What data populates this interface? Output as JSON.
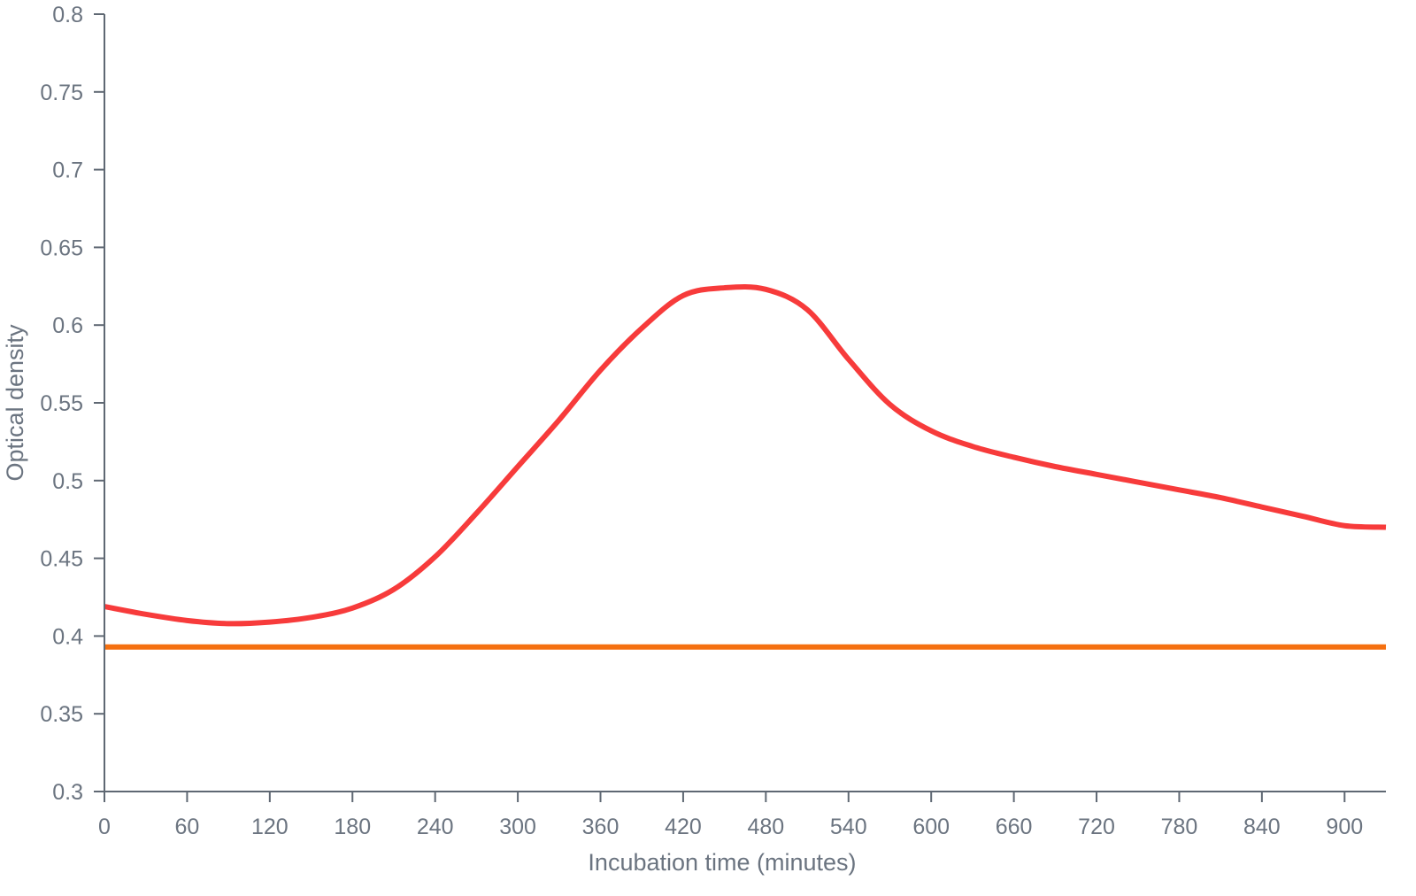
{
  "chart_data": {
    "type": "line",
    "title": "",
    "xlabel": "Incubation time (minutes)",
    "ylabel": "Optical density",
    "xlim": [
      0,
      930
    ],
    "ylim": [
      0.3,
      0.8
    ],
    "x_ticks": [
      0,
      60,
      120,
      180,
      240,
      300,
      360,
      420,
      480,
      540,
      600,
      660,
      720,
      780,
      840,
      900
    ],
    "y_ticks": [
      0.3,
      0.35,
      0.4,
      0.45,
      0.5,
      0.55,
      0.6,
      0.65,
      0.7,
      0.75,
      0.8
    ],
    "x_tick_labels": [
      "0",
      "60",
      "120",
      "180",
      "240",
      "300",
      "360",
      "420",
      "480",
      "540",
      "600",
      "660",
      "720",
      "780",
      "840",
      "900"
    ],
    "y_tick_labels": [
      "0.3",
      "0.35",
      "0.4",
      "0.45",
      "0.5",
      "0.55",
      "0.6",
      "0.65",
      "0.7",
      "0.75",
      "0.8"
    ],
    "grid": false,
    "series": [
      {
        "color": "#f73b3b",
        "x": [
          0,
          30,
          60,
          90,
          120,
          150,
          180,
          210,
          240,
          270,
          300,
          330,
          360,
          390,
          420,
          450,
          480,
          510,
          540,
          570,
          600,
          630,
          660,
          690,
          720,
          750,
          780,
          810,
          840,
          870,
          900,
          930
        ],
        "y": [
          0.419,
          0.414,
          0.41,
          0.408,
          0.409,
          0.412,
          0.418,
          0.43,
          0.451,
          0.479,
          0.509,
          0.539,
          0.571,
          0.598,
          0.619,
          0.624,
          0.623,
          0.61,
          0.578,
          0.549,
          0.532,
          0.522,
          0.515,
          0.509,
          0.504,
          0.499,
          0.494,
          0.489,
          0.483,
          0.477,
          0.471,
          0.47
        ]
      },
      {
        "color": "#f57010",
        "x": [
          0,
          930
        ],
        "y": [
          0.393,
          0.393
        ]
      }
    ]
  }
}
